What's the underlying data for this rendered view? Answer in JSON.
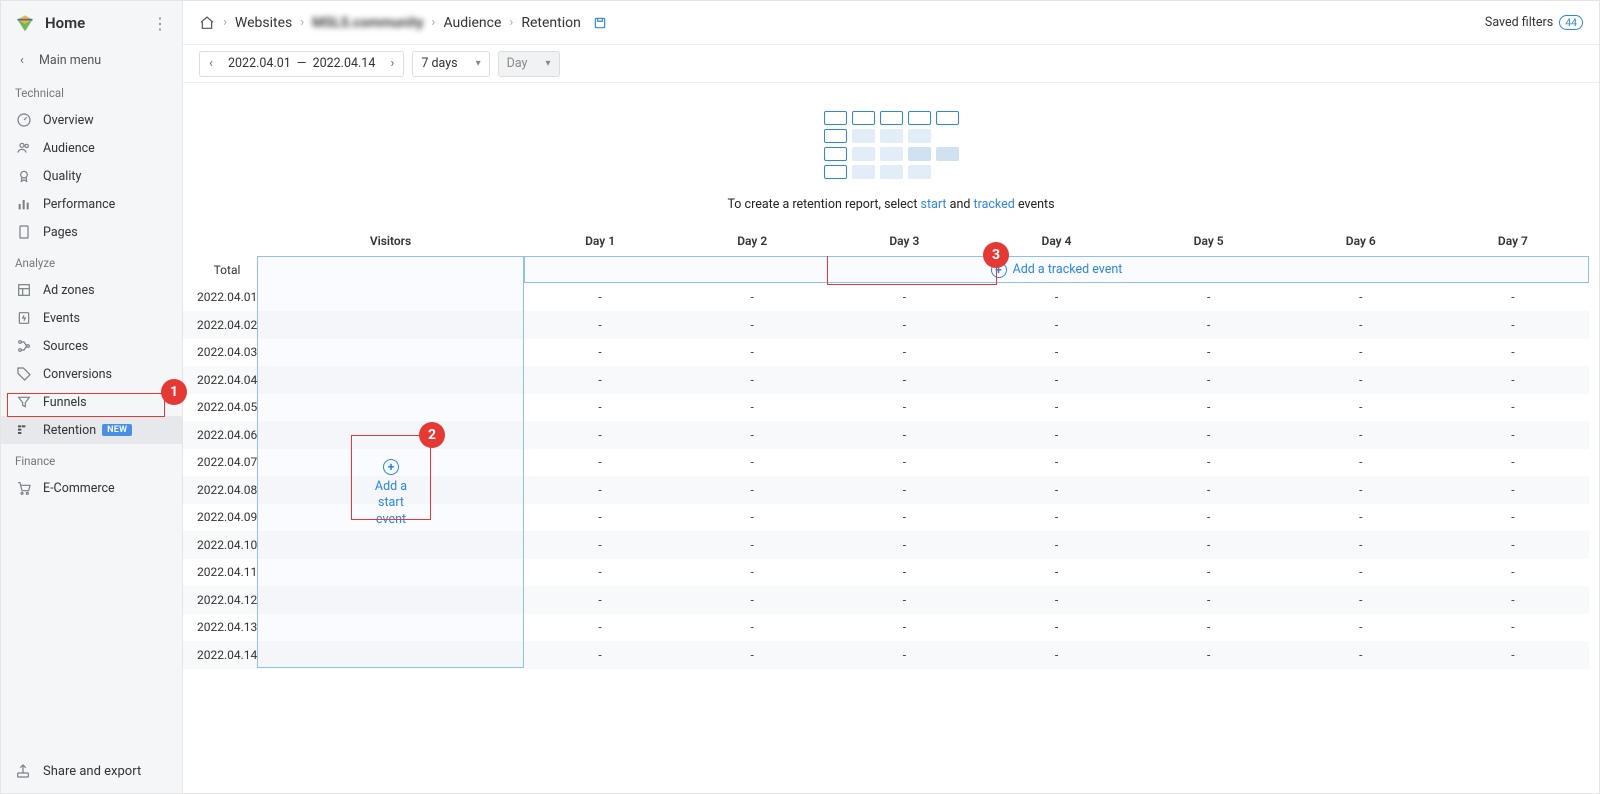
{
  "sidebar": {
    "home": "Home",
    "main_menu": "Main menu",
    "sections": {
      "technical": "Technical",
      "analyze": "Analyze",
      "finance": "Finance"
    },
    "items": {
      "overview": "Overview",
      "audience": "Audience",
      "quality": "Quality",
      "performance": "Performance",
      "pages": "Pages",
      "ad_zones": "Ad zones",
      "events": "Events",
      "sources": "Sources",
      "conversions": "Conversions",
      "funnels": "Funnels",
      "retention": "Retention",
      "ecommerce": "E-Commerce"
    },
    "new_badge": "NEW",
    "share": "Share and export"
  },
  "breadcrumb": {
    "websites": "Websites",
    "site": "MSLS.community",
    "audience": "Audience",
    "retention": "Retention"
  },
  "saved_filters": {
    "label": "Saved filters",
    "count": "44"
  },
  "filters": {
    "date_from": "2022.04.01",
    "date_to": "2022.04.14",
    "range_sep": "—",
    "period": "7 days",
    "granularity": "Day"
  },
  "illus_text": {
    "prefix": "To create a retention report, select ",
    "link1": "start",
    "mid": " and ",
    "link2": "tracked",
    "suffix": " events"
  },
  "table": {
    "visitors": "Visitors",
    "days": [
      "Day 1",
      "Day 2",
      "Day 3",
      "Day 4",
      "Day 5",
      "Day 6",
      "Day 7"
    ],
    "total": "Total",
    "dates": [
      "2022.04.01",
      "2022.04.02",
      "2022.04.03",
      "2022.04.04",
      "2022.04.05",
      "2022.04.06",
      "2022.04.07",
      "2022.04.08",
      "2022.04.09",
      "2022.04.10",
      "2022.04.11",
      "2022.04.12",
      "2022.04.13",
      "2022.04.14"
    ],
    "placeholder": "-"
  },
  "actions": {
    "add_start_line1": "Add a",
    "add_start_line2": "start event",
    "add_tracked": "Add a tracked event"
  },
  "callouts": {
    "c1": "1",
    "c2": "2",
    "c3": "3"
  },
  "colors": {
    "accent": "#2e86de",
    "danger": "#e53935",
    "border": "#e5e5e5",
    "sidebar_bg": "#f4f6f8"
  }
}
